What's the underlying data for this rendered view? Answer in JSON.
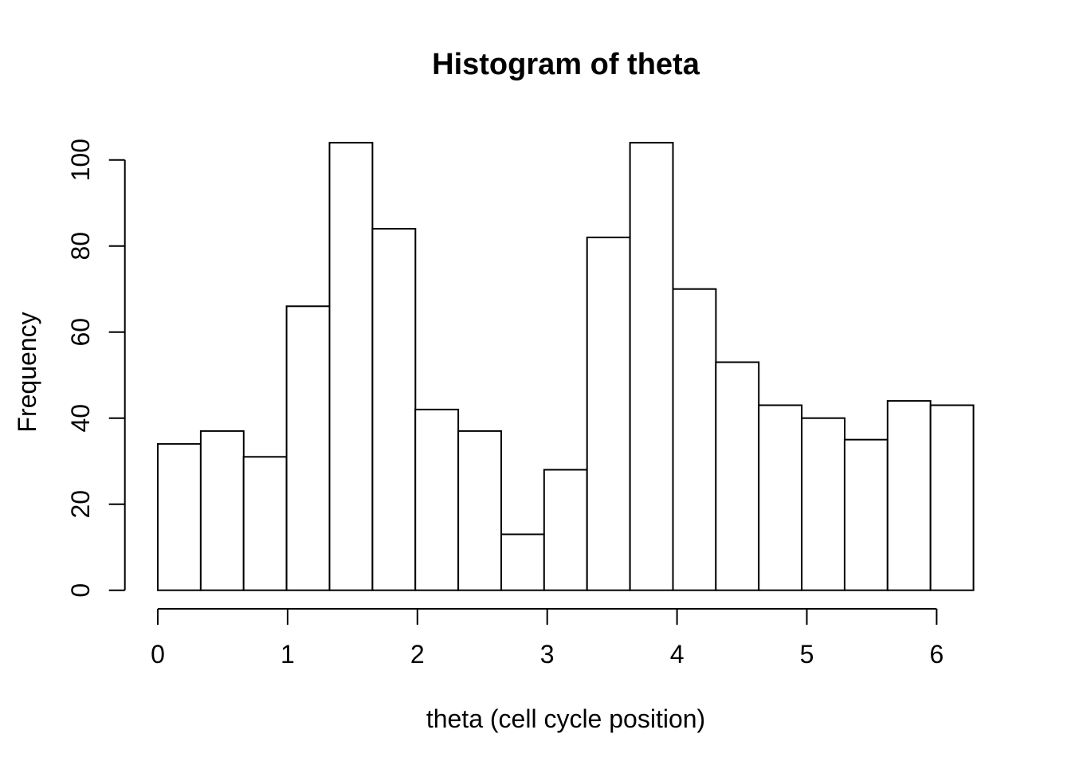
{
  "title": "Histogram of theta",
  "axes": {
    "x_label": "theta (cell cycle position)",
    "y_label": "Frequency"
  },
  "chart_data": {
    "type": "bar",
    "subtype": "histogram",
    "title": "Histogram of theta",
    "xlabel": "theta (cell cycle position)",
    "ylabel": "Frequency",
    "bin_start": 0,
    "bin_width": 0.3307,
    "counts": [
      34,
      37,
      31,
      66,
      104,
      84,
      42,
      37,
      13,
      28,
      82,
      104,
      70,
      53,
      43,
      40,
      35,
      44,
      43
    ],
    "x_ticks": [
      0,
      1,
      2,
      3,
      4,
      5,
      6
    ],
    "y_ticks": [
      0,
      20,
      40,
      60,
      80,
      100
    ],
    "xlim": [
      0,
      6.2833
    ],
    "ylim": [
      0,
      104
    ],
    "grid": false,
    "legend": false,
    "bar_fill": "#ffffff",
    "bar_stroke": "#000000",
    "axis_color": "#000000",
    "text_color": "#000000",
    "background": "#ffffff"
  }
}
